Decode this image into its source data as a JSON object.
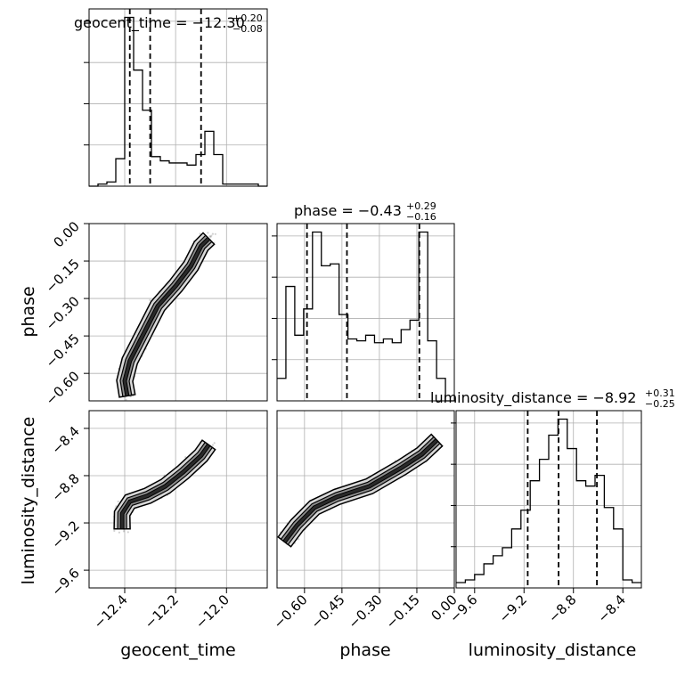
{
  "chart_data": {
    "type": "corner",
    "parameters": [
      "geocent_time",
      "phase",
      "luminosity_distance"
    ],
    "titles": [
      {
        "main": "geocent_time = −12.30",
        "sup": "+0.20",
        "sub": "−0.08"
      },
      {
        "main": "phase = −0.43",
        "sup": "+0.29",
        "sub": "−0.16"
      },
      {
        "main": "luminosity_distance = −8.92",
        "sup": "+0.31",
        "sub": "−0.25"
      }
    ],
    "axis_labels": {
      "x": [
        "geocent_time",
        "phase",
        "luminosity_distance"
      ],
      "y": [
        "phase",
        "luminosity_distance"
      ]
    },
    "ranges": {
      "geocent_time": [
        -12.54,
        -11.84
      ],
      "phase": [
        -0.71,
        0.0
      ],
      "luminosity_distance": [
        -9.75,
        -8.25
      ]
    },
    "ticks": {
      "geocent_time": {
        "values": [
          -12.4,
          -12.2,
          -12.0
        ],
        "labels": [
          "−12.4",
          "−12.2",
          "−12.0"
        ]
      },
      "phase": {
        "values": [
          -0.6,
          -0.45,
          -0.3,
          -0.15,
          0.0
        ],
        "labels": [
          "−0.60",
          "−0.45",
          "−0.30",
          "−0.15",
          "0.00"
        ]
      },
      "luminosity_distance": {
        "values": [
          -9.6,
          -9.2,
          -8.8,
          -8.4
        ],
        "labels": [
          "−9.6",
          "−9.2",
          "−8.8",
          "−8.4"
        ]
      }
    },
    "quantiles": {
      "geocent_time": [
        -12.38,
        -12.3,
        -12.1
      ],
      "phase": [
        -0.59,
        -0.43,
        -0.14
      ],
      "luminosity_distance": [
        -9.17,
        -8.92,
        -8.61
      ]
    },
    "histograms": {
      "geocent_time": {
        "edges": [
          -12.54,
          -12.505,
          -12.47,
          -12.435,
          -12.4,
          -12.365,
          -12.33,
          -12.295,
          -12.26,
          -12.225,
          -12.19,
          -12.155,
          -12.12,
          -12.085,
          -12.05,
          -12.015,
          -11.98,
          -11.945,
          -11.91,
          -11.875,
          -11.84
        ],
        "counts": [
          0,
          1,
          2,
          13,
          80,
          55,
          36,
          14,
          12,
          11,
          11,
          10,
          15,
          26,
          15,
          1,
          1,
          1,
          1,
          0
        ]
      },
      "phase": {
        "edges": [
          -0.71,
          -0.6745,
          -0.639,
          -0.6035,
          -0.568,
          -0.5325,
          -0.497,
          -0.4615,
          -0.426,
          -0.3905,
          -0.355,
          -0.3195,
          -0.284,
          -0.2485,
          -0.213,
          -0.1775,
          -0.142,
          -0.1065,
          -0.071,
          -0.0355,
          0.0
        ],
        "counts": [
          12,
          61,
          35,
          49,
          90,
          72,
          73,
          46,
          33,
          32,
          35,
          31,
          33,
          31,
          38,
          43,
          90,
          32,
          12,
          0
        ]
      },
      "luminosity_distance": {
        "edges": [
          -9.75,
          -9.675,
          -9.6,
          -9.525,
          -9.45,
          -9.375,
          -9.3,
          -9.225,
          -9.15,
          -9.075,
          -9.0,
          -8.925,
          -8.85,
          -8.775,
          -8.7,
          -8.625,
          -8.55,
          -8.475,
          -8.4,
          -8.325,
          -8.25
        ],
        "counts": [
          2,
          3,
          5,
          9,
          12,
          15,
          22,
          29,
          40,
          48,
          57,
          63,
          52,
          40,
          38,
          42,
          30,
          22,
          3,
          2
        ]
      }
    },
    "pairs": [
      {
        "x": "geocent_time",
        "y": "phase",
        "trajectory": [
          [
            -12.39,
            -0.69
          ],
          [
            -12.4,
            -0.63
          ],
          [
            -12.38,
            -0.55
          ],
          [
            -12.33,
            -0.45
          ],
          [
            -12.27,
            -0.33
          ],
          [
            -12.2,
            -0.25
          ],
          [
            -12.14,
            -0.17
          ],
          [
            -12.1,
            -0.09
          ],
          [
            -12.07,
            -0.06
          ]
        ],
        "levels": [
          0.12,
          0.08,
          0.04
        ]
      },
      {
        "x": "geocent_time",
        "y": "luminosity_distance",
        "trajectory": [
          [
            -12.41,
            -9.25
          ],
          [
            -12.41,
            -9.12
          ],
          [
            -12.38,
            -9.02
          ],
          [
            -12.31,
            -8.97
          ],
          [
            -12.24,
            -8.89
          ],
          [
            -12.17,
            -8.77
          ],
          [
            -12.1,
            -8.63
          ],
          [
            -12.07,
            -8.54
          ]
        ],
        "levels": [
          0.12,
          0.08,
          0.04
        ]
      },
      {
        "x": "phase",
        "y": "luminosity_distance",
        "trajectory": [
          [
            -0.68,
            -9.36
          ],
          [
            -0.63,
            -9.22
          ],
          [
            -0.56,
            -9.07
          ],
          [
            -0.47,
            -8.98
          ],
          [
            -0.34,
            -8.89
          ],
          [
            -0.21,
            -8.73
          ],
          [
            -0.13,
            -8.62
          ],
          [
            -0.07,
            -8.5
          ]
        ],
        "levels": [
          0.06,
          0.04,
          0.02
        ]
      }
    ],
    "grid": true
  }
}
